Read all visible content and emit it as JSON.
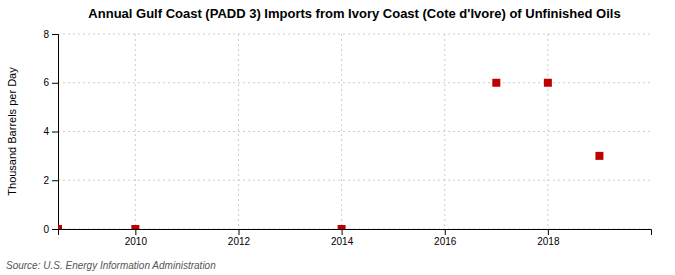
{
  "chart_data": {
    "type": "scatter",
    "title": "Annual Gulf Coast (PADD 3) Imports from Ivory Coast (Cote d'Ivore) of Unfinished Oils",
    "y_label": "Thousand Barrels per Day",
    "annotations": [
      "Source: U.S. Energy Information Administration"
    ],
    "x": [
      2008.5,
      2010,
      2014,
      2017,
      2018,
      2019
    ],
    "values": [
      0,
      0,
      0,
      6,
      6,
      3
    ],
    "color": "#c00000",
    "marker": "square",
    "xlim": [
      2008.5,
      2020
    ],
    "ylim": [
      0,
      8
    ],
    "xticks": [
      2010,
      2012,
      2014,
      2016,
      2018
    ],
    "yticks": [
      0,
      2,
      4,
      6,
      8
    ],
    "grid": true
  }
}
